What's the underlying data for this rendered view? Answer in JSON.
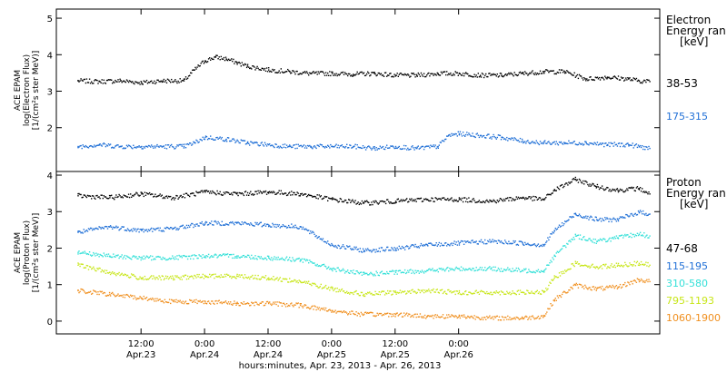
{
  "chart_data": [
    {
      "type": "scatter",
      "panel": "electron",
      "ylabel_lines": [
        "ACE EPAM",
        "log(Electron Flux)",
        "[1/(cm²s ster MeV)]"
      ],
      "ylim": [
        0.8,
        5.25
      ],
      "yticks": [
        2,
        3,
        4,
        5
      ],
      "legend_title_lines": [
        "Electron",
        "Energy ran",
        "[keV]"
      ],
      "series": [
        {
          "name": "38-53",
          "color": "#000000",
          "x": [
            0,
            4,
            8,
            12,
            16,
            20,
            22,
            24,
            26,
            28,
            30,
            32,
            36,
            40,
            44,
            48,
            52,
            56,
            60,
            64,
            68,
            72,
            76,
            80,
            84,
            88,
            92,
            96,
            100,
            104,
            106,
            108
          ],
          "y": [
            3.3,
            3.28,
            3.3,
            3.25,
            3.3,
            3.3,
            3.6,
            3.85,
            3.95,
            3.9,
            3.8,
            3.7,
            3.6,
            3.55,
            3.5,
            3.5,
            3.48,
            3.5,
            3.45,
            3.45,
            3.5,
            3.5,
            3.45,
            3.45,
            3.5,
            3.55,
            3.55,
            3.35,
            3.4,
            3.35,
            3.3,
            3.28
          ]
        },
        {
          "name": "175-315",
          "color": "#1f6fd6",
          "x": [
            0,
            4,
            8,
            12,
            16,
            20,
            22,
            24,
            28,
            32,
            36,
            40,
            44,
            48,
            52,
            56,
            60,
            64,
            68,
            70,
            72,
            76,
            80,
            84,
            88,
            92,
            96,
            100,
            104,
            106,
            108
          ],
          "y": [
            1.5,
            1.55,
            1.5,
            1.5,
            1.5,
            1.5,
            1.6,
            1.75,
            1.7,
            1.6,
            1.55,
            1.5,
            1.5,
            1.5,
            1.5,
            1.45,
            1.5,
            1.45,
            1.5,
            1.8,
            1.85,
            1.8,
            1.75,
            1.65,
            1.6,
            1.6,
            1.6,
            1.55,
            1.55,
            1.5,
            1.45
          ]
        }
      ]
    },
    {
      "type": "scatter",
      "panel": "proton",
      "ylabel_lines": [
        "ACE EPAM",
        "log(Proton Flux)",
        "[1/(cm²s ster MeV)]"
      ],
      "ylim": [
        -0.35,
        4.1
      ],
      "yticks": [
        0,
        1,
        2,
        3,
        4
      ],
      "legend_title_lines": [
        "Proton",
        "Energy ran",
        "[keV]"
      ],
      "series": [
        {
          "name": "47-68",
          "color": "#000000",
          "x": [
            0,
            6,
            12,
            18,
            24,
            30,
            36,
            42,
            48,
            54,
            60,
            66,
            72,
            78,
            84,
            88,
            90,
            94,
            98,
            102,
            106,
            108
          ],
          "y": [
            3.45,
            3.4,
            3.5,
            3.4,
            3.55,
            3.5,
            3.55,
            3.5,
            3.35,
            3.25,
            3.3,
            3.35,
            3.35,
            3.3,
            3.4,
            3.35,
            3.6,
            3.9,
            3.7,
            3.6,
            3.65,
            3.5
          ]
        },
        {
          "name": "115-195",
          "color": "#1f6fd6",
          "x": [
            0,
            6,
            12,
            18,
            24,
            30,
            36,
            42,
            48,
            54,
            60,
            66,
            72,
            78,
            84,
            88,
            90,
            94,
            98,
            102,
            106,
            108
          ],
          "y": [
            2.45,
            2.6,
            2.5,
            2.55,
            2.7,
            2.7,
            2.65,
            2.6,
            2.1,
            1.95,
            2.0,
            2.1,
            2.15,
            2.2,
            2.15,
            2.1,
            2.5,
            2.95,
            2.8,
            2.8,
            3.0,
            2.95
          ]
        },
        {
          "name": "310-580",
          "color": "#33e0d8",
          "x": [
            0,
            6,
            12,
            18,
            24,
            30,
            36,
            42,
            48,
            54,
            60,
            66,
            72,
            78,
            84,
            88,
            90,
            94,
            98,
            102,
            106,
            108
          ],
          "y": [
            1.9,
            1.8,
            1.75,
            1.75,
            1.8,
            1.8,
            1.75,
            1.7,
            1.45,
            1.3,
            1.35,
            1.4,
            1.45,
            1.45,
            1.4,
            1.4,
            1.8,
            2.35,
            2.2,
            2.3,
            2.4,
            2.35
          ]
        },
        {
          "name": "795-1193",
          "color": "#c8e61a",
          "x": [
            0,
            6,
            12,
            18,
            24,
            30,
            36,
            42,
            48,
            54,
            60,
            66,
            72,
            78,
            84,
            88,
            90,
            94,
            98,
            102,
            106,
            108
          ],
          "y": [
            1.55,
            1.35,
            1.2,
            1.2,
            1.25,
            1.25,
            1.2,
            1.1,
            0.9,
            0.75,
            0.8,
            0.85,
            0.8,
            0.8,
            0.8,
            0.8,
            1.2,
            1.6,
            1.5,
            1.55,
            1.6,
            1.55
          ]
        },
        {
          "name": "1060-1900",
          "color": "#f09020",
          "x": [
            0,
            6,
            12,
            18,
            24,
            30,
            36,
            42,
            48,
            54,
            60,
            66,
            72,
            78,
            84,
            88,
            90,
            94,
            98,
            102,
            106,
            108
          ],
          "y": [
            0.85,
            0.75,
            0.65,
            0.55,
            0.55,
            0.5,
            0.5,
            0.45,
            0.3,
            0.2,
            0.2,
            0.15,
            0.15,
            0.1,
            0.1,
            0.15,
            0.6,
            1.0,
            0.9,
            0.95,
            1.15,
            1.1
          ]
        }
      ]
    }
  ],
  "xaxis": {
    "range_hours": [
      -4,
      110
    ],
    "ticks": [
      {
        "h": 12,
        "time": "12:00",
        "date": "Apr.23"
      },
      {
        "h": 24,
        "time": "0:00",
        "date": "Apr.24"
      },
      {
        "h": 36,
        "time": "12:00",
        "date": "Apr.24"
      },
      {
        "h": 48,
        "time": "0:00",
        "date": "Apr.25"
      },
      {
        "h": 60,
        "time": "12:00",
        "date": "Apr.25"
      },
      {
        "h": 72,
        "time": "0:00",
        "date": "Apr.26"
      }
    ],
    "label": "hours:minutes, Apr. 23, 2013 - Apr. 26, 2013"
  }
}
